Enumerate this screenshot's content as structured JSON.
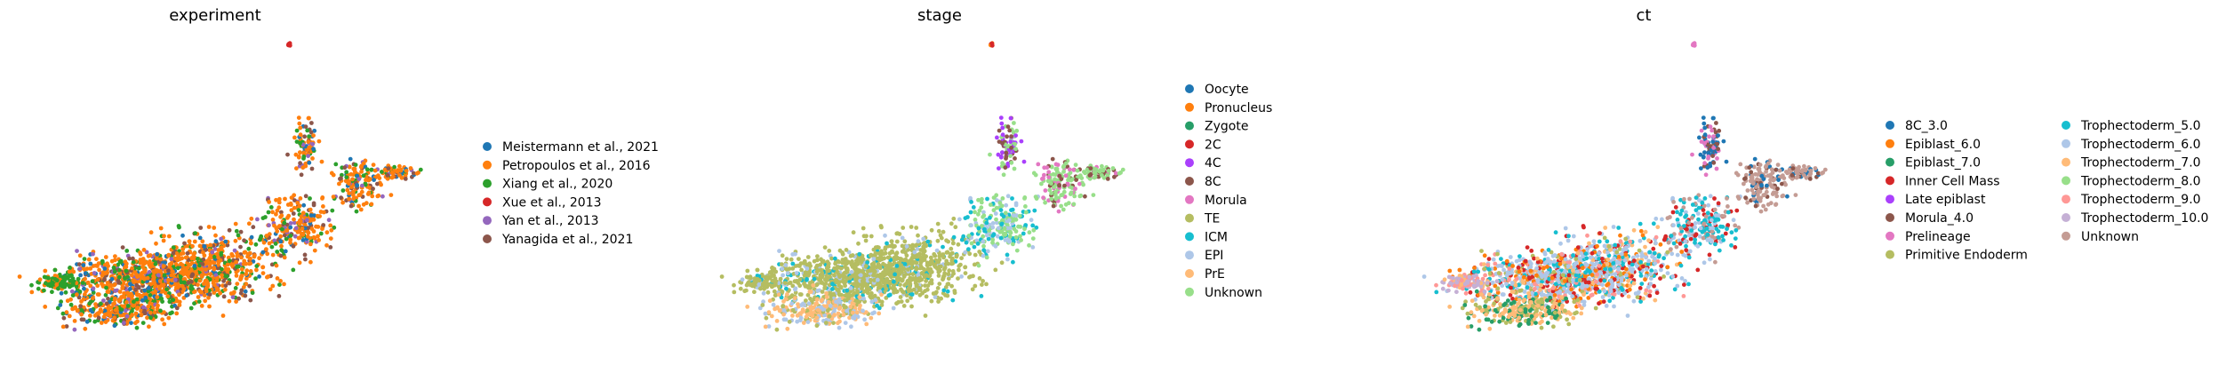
{
  "chart_data": [
    {
      "type": "scatter",
      "title": "experiment",
      "xlabel": "",
      "ylabel": "",
      "grid": false,
      "legend_placement": "right",
      "legend_columns": 1,
      "series": [
        {
          "name": "Meistermann et al., 2021",
          "color": "#1f77b4"
        },
        {
          "name": "Petropoulos et al., 2016",
          "color": "#ff7f0e"
        },
        {
          "name": "Xiang et al., 2020",
          "color": "#2ca02c"
        },
        {
          "name": "Xue et al., 2013",
          "color": "#d62728"
        },
        {
          "name": "Yan et al., 2013",
          "color": "#9467bd"
        },
        {
          "name": "Yanagida et al., 2021",
          "color": "#8c564b"
        }
      ]
    },
    {
      "type": "scatter",
      "title": "stage",
      "xlabel": "",
      "ylabel": "",
      "grid": false,
      "legend_placement": "right",
      "legend_columns": 1,
      "series": [
        {
          "name": "Oocyte",
          "color": "#1f77b4"
        },
        {
          "name": "Pronucleus",
          "color": "#ff7f0e"
        },
        {
          "name": "Zygote",
          "color": "#279e68"
        },
        {
          "name": "2C",
          "color": "#d62728"
        },
        {
          "name": "4C",
          "color": "#aa40fc"
        },
        {
          "name": "8C",
          "color": "#8c564b"
        },
        {
          "name": "Morula",
          "color": "#e377c2"
        },
        {
          "name": "TE",
          "color": "#b5bd61"
        },
        {
          "name": "ICM",
          "color": "#17becf"
        },
        {
          "name": "EPI",
          "color": "#aec7e8"
        },
        {
          "name": "PrE",
          "color": "#ffbb78"
        },
        {
          "name": "Unknown",
          "color": "#98df8a"
        }
      ]
    },
    {
      "type": "scatter",
      "title": "ct",
      "xlabel": "",
      "ylabel": "",
      "grid": false,
      "legend_placement": "right",
      "legend_columns": 2,
      "series": [
        {
          "name": "8C_3.0",
          "color": "#1f77b4"
        },
        {
          "name": "Epiblast_6.0",
          "color": "#ff7f0e"
        },
        {
          "name": "Epiblast_7.0",
          "color": "#279e68"
        },
        {
          "name": "Inner Cell Mass",
          "color": "#d62728"
        },
        {
          "name": "Late epiblast",
          "color": "#aa40fc"
        },
        {
          "name": "Morula_4.0",
          "color": "#8c564b"
        },
        {
          "name": "Prelineage",
          "color": "#e377c2"
        },
        {
          "name": "Primitive Endoderm",
          "color": "#b5bd61"
        },
        {
          "name": "Trophectoderm_5.0",
          "color": "#17becf"
        },
        {
          "name": "Trophectoderm_6.0",
          "color": "#aec7e8"
        },
        {
          "name": "Trophectoderm_7.0",
          "color": "#ffbb78"
        },
        {
          "name": "Trophectoderm_8.0",
          "color": "#98df8a"
        },
        {
          "name": "Trophectoderm_9.0",
          "color": "#ff9896"
        },
        {
          "name": "Trophectoderm_10.0",
          "color": "#c5b0d5"
        },
        {
          "name": "Unknown",
          "color": "#c49c94"
        }
      ]
    }
  ]
}
